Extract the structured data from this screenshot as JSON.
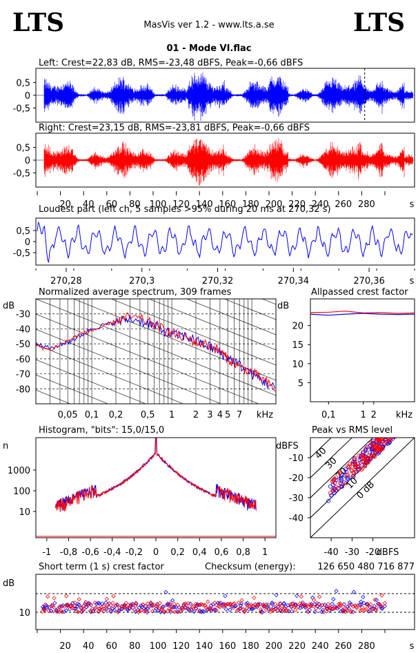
{
  "header": {
    "logo_left": "LTS",
    "logo_right": "LTS",
    "app_title": "MasVis ver 1.2 - www.lts.a.se",
    "file_title": "01 - Mode VI.flac"
  },
  "colors": {
    "left": "#0000ff",
    "right": "#ff0000",
    "grid": "#000000"
  },
  "chart_data": [
    {
      "id": "left_waveform",
      "type": "area",
      "title": "Left: Crest=22,83 dB, RMS=-23,48 dBFS, Peak=-0,66 dBFS",
      "y_ticks": [
        "0,5",
        "0",
        "-0,5"
      ],
      "ylim": [
        -1,
        1
      ],
      "xlim": [
        0,
        300
      ],
      "series": [
        {
          "color": "#0000ff"
        }
      ],
      "loudest_marker_s": 270.32
    },
    {
      "id": "right_waveform",
      "type": "area",
      "title": "Right: Crest=23,15 dB, RMS=-23,81 dBFS, Peak=-0,66 dBFS",
      "y_ticks": [
        "0,5",
        "0",
        "-0,5"
      ],
      "ylim": [
        -1,
        1
      ],
      "xlim": [
        0,
        300
      ],
      "x_ticks": [
        "20",
        "40",
        "60",
        "80",
        "100",
        "120",
        "140",
        "160",
        "180",
        "200",
        "220",
        "240",
        "260",
        "280"
      ],
      "x_unit": "s",
      "series": [
        {
          "color": "#ff0000"
        }
      ]
    },
    {
      "id": "loudest_part",
      "type": "line",
      "title": "Loudest part (left  ch, 5 samples >95% during 20 ms at 270,32 s)",
      "y_ticks": [
        "0,5",
        "0",
        "-0,5"
      ],
      "ylim": [
        -1,
        1
      ],
      "xlim": [
        270.272,
        270.372
      ],
      "x_ticks": [
        "270,28",
        "270,3",
        "270,32",
        "270,34",
        "270,36"
      ],
      "x_unit": "s",
      "series": [
        {
          "color": "#0000ff"
        }
      ]
    },
    {
      "id": "spectrum",
      "type": "line",
      "title": "Normalized average spectrum, 309 frames",
      "ylabel": "dB",
      "y_ticks": [
        "-30",
        "-40",
        "-50",
        "-60",
        "-70",
        "-80"
      ],
      "ylim": [
        -90,
        -20
      ],
      "x_scale": "log",
      "xlim_khz": [
        0.02,
        20
      ],
      "x_ticks": [
        "0,05",
        "0,1",
        "0,2",
        "0,5",
        "1",
        "2",
        "3",
        "4",
        "5",
        "7"
      ],
      "x_unit": "kHz",
      "series": [
        {
          "color": "#0000ff",
          "points_khz_db": [
            [
              0.02,
              -50
            ],
            [
              0.03,
              -53
            ],
            [
              0.05,
              -49
            ],
            [
              0.07,
              -45
            ],
            [
              0.1,
              -40
            ],
            [
              0.15,
              -37
            ],
            [
              0.2,
              -36
            ],
            [
              0.3,
              -33
            ],
            [
              0.5,
              -36
            ],
            [
              0.7,
              -40
            ],
            [
              1,
              -44
            ],
            [
              1.5,
              -45
            ],
            [
              2,
              -48
            ],
            [
              3,
              -52
            ],
            [
              4,
              -56
            ],
            [
              5,
              -59
            ],
            [
              7,
              -64
            ],
            [
              10,
              -70
            ],
            [
              14,
              -75
            ],
            [
              20,
              -80
            ]
          ]
        },
        {
          "color": "#ff0000",
          "points_khz_db": [
            [
              0.02,
              -51
            ],
            [
              0.03,
              -54
            ],
            [
              0.05,
              -48
            ],
            [
              0.07,
              -44
            ],
            [
              0.1,
              -41
            ],
            [
              0.15,
              -38
            ],
            [
              0.2,
              -35
            ],
            [
              0.3,
              -32
            ],
            [
              0.5,
              -35
            ],
            [
              0.7,
              -39
            ],
            [
              1,
              -43
            ],
            [
              1.5,
              -46
            ],
            [
              2,
              -49
            ],
            [
              3,
              -51
            ],
            [
              4,
              -55
            ],
            [
              5,
              -60
            ],
            [
              7,
              -65
            ],
            [
              10,
              -69
            ],
            [
              14,
              -74
            ],
            [
              20,
              -81
            ]
          ]
        }
      ]
    },
    {
      "id": "allpassed_crest",
      "type": "line",
      "title": "Allpassed crest factor",
      "ylabel": "dB",
      "y_ticks": [
        "20",
        "15",
        "10",
        "5"
      ],
      "ylim": [
        0,
        27
      ],
      "x_scale": "log",
      "xlim_khz": [
        0.03,
        30
      ],
      "x_ticks": [
        "0,1",
        "1",
        "2"
      ],
      "x_unit": "kHz",
      "series": [
        {
          "color": "#0000ff",
          "points_khz_db": [
            [
              0.03,
              23
            ],
            [
              0.1,
              22.7
            ],
            [
              0.3,
              23
            ],
            [
              1,
              23.2
            ],
            [
              3,
              23
            ],
            [
              10,
              22.9
            ],
            [
              30,
              23
            ]
          ]
        },
        {
          "color": "#ff0000",
          "points_khz_db": [
            [
              0.03,
              23.4
            ],
            [
              0.1,
              23.5
            ],
            [
              0.3,
              23.8
            ],
            [
              1,
              23.3
            ],
            [
              3,
              23.4
            ],
            [
              10,
              23.2
            ],
            [
              30,
              23.3
            ]
          ]
        }
      ]
    },
    {
      "id": "histogram",
      "type": "line",
      "title": "Histogram, \"bits\": 15,0/15,0",
      "ylabel": "n",
      "y_scale": "log",
      "y_ticks": [
        "1000",
        "100",
        "10"
      ],
      "xlim": [
        -1.1,
        1.1
      ],
      "x_ticks": [
        "-1",
        "-0,8",
        "-0,6",
        "-0,4",
        "-0,2",
        "0",
        "0,2",
        "0,4",
        "0,6",
        "0,8",
        "1"
      ],
      "series": [
        {
          "color": "#0000ff"
        },
        {
          "color": "#ff0000"
        }
      ]
    },
    {
      "id": "peak_vs_rms",
      "type": "scatter",
      "title": "Peak vs RMS level",
      "ylabel": "dBFS",
      "xlabel": "dBFS",
      "y_ticks": [
        "-10",
        "-20",
        "-30",
        "-40"
      ],
      "x_ticks": [
        "-40",
        "-30",
        "-20"
      ],
      "xlim": [
        -50,
        0
      ],
      "ylim": [
        -50,
        0
      ],
      "crest_lines": [
        "40",
        "30",
        "20",
        "10",
        "0 dB"
      ],
      "series": [
        {
          "color": "#0000ff"
        },
        {
          "color": "#ff0000"
        }
      ]
    },
    {
      "id": "short_term_crest",
      "type": "scatter",
      "title": "Short term (1 s) crest factor",
      "checksum_label": "Checksum (energy):",
      "checksum_value": "126 650 480 716 877",
      "ylabel": "dB",
      "y_ticks": [
        "10"
      ],
      "xlim": [
        0,
        300
      ],
      "x_ticks": [
        "20",
        "40",
        "60",
        "80",
        "100",
        "120",
        "140",
        "160",
        "180",
        "200",
        "220",
        "240",
        "260",
        "280"
      ],
      "x_unit": "s",
      "series": [
        {
          "color": "#0000ff"
        },
        {
          "color": "#ff0000"
        }
      ]
    }
  ]
}
